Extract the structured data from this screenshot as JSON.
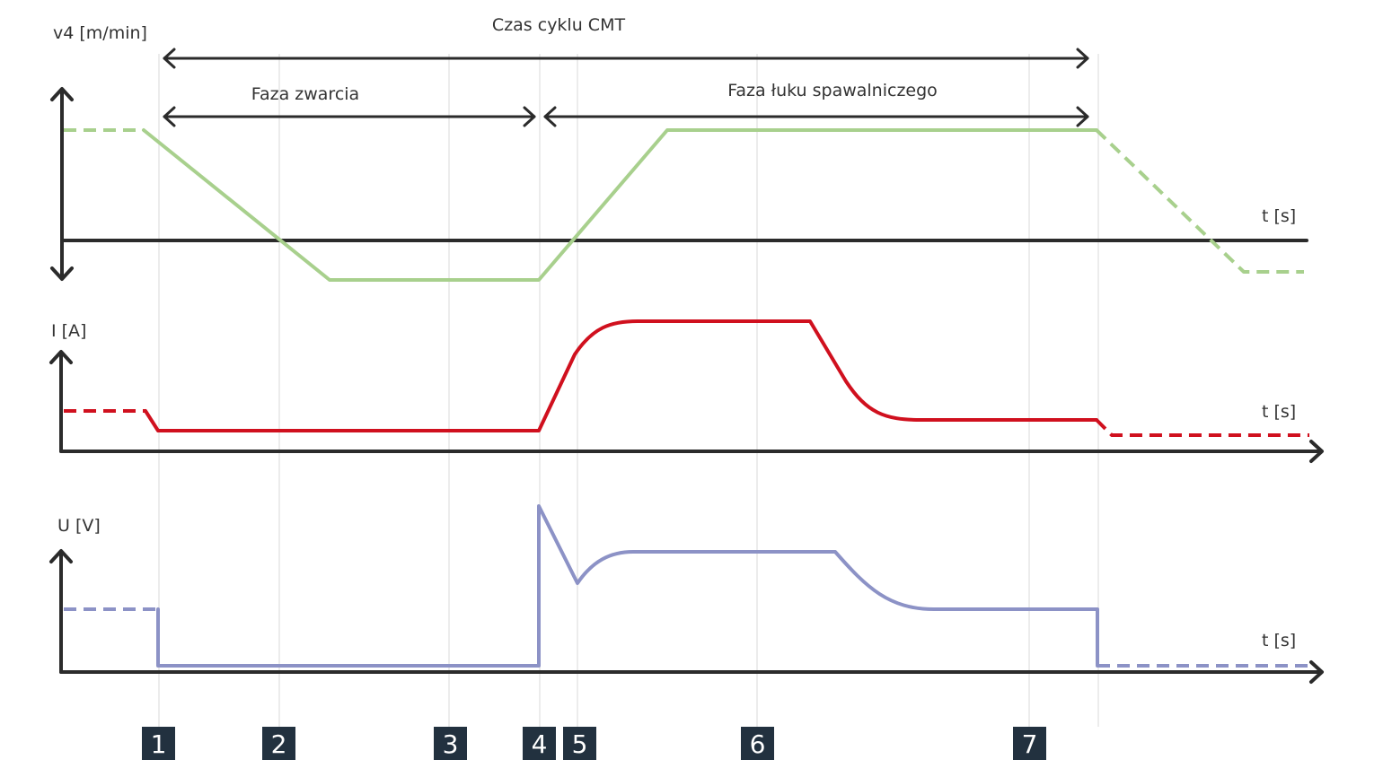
{
  "labels": {
    "v4_axis": "v4 [m/min]",
    "i_axis": "I [A]",
    "u_axis": "U [V]",
    "t_axis": "t [s]",
    "cycle_time": "Czas cyklu CMT",
    "short_circuit_phase": "Faza zwarcia",
    "arc_phase": "Faza łuku spawalniczego"
  },
  "markers": [
    "1",
    "2",
    "3",
    "4",
    "5",
    "6",
    "7"
  ],
  "colors": {
    "axis": "#2b2b2b",
    "wire_speed": "#a8d08d",
    "current": "#d0101e",
    "voltage": "#8c92c6",
    "marker_box": "#22313f"
  }
}
